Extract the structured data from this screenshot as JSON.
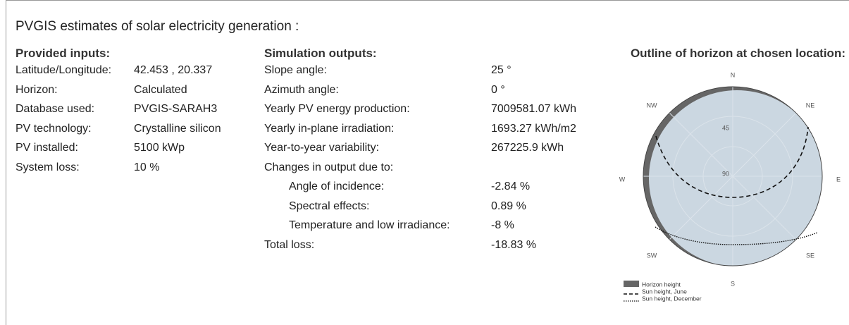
{
  "title": "PVGIS estimates of solar electricity generation :",
  "inputs": {
    "heading": "Provided inputs:",
    "rows": [
      [
        "Latitude/Longitude:",
        "42.453 , 20.337"
      ],
      [
        "Horizon:",
        "Calculated"
      ],
      [
        "Database used:",
        "PVGIS-SARAH3"
      ],
      [
        "PV technology:",
        "Crystalline silicon"
      ],
      [
        "PV installed:",
        "5100 kWp"
      ],
      [
        "System loss:",
        "10 %"
      ]
    ]
  },
  "outputs": {
    "heading": "Simulation outputs:",
    "rows": [
      [
        "Slope angle:",
        "25 °"
      ],
      [
        "Azimuth angle:",
        "0 °"
      ],
      [
        "Yearly PV energy production:",
        "7009581.07 kWh"
      ],
      [
        "Yearly in-plane irradiation:",
        "1693.27 kWh/m2"
      ],
      [
        "Year-to-year variability:",
        "267225.9 kWh"
      ]
    ],
    "changes_label": "Changes in output due to:",
    "changes": [
      [
        "Angle of incidence:",
        "-2.84 %"
      ],
      [
        "Spectral effects:",
        "0.89 %"
      ],
      [
        "Temperature and low irradiance:",
        "-8 %"
      ]
    ],
    "total": [
      "Total loss:",
      "-18.83 %"
    ]
  },
  "horizon": {
    "heading": "Outline of horizon at chosen location:",
    "directions": {
      "N": "N",
      "NE": "NE",
      "E": "E",
      "SE": "SE",
      "S": "S",
      "SW": "SW",
      "W": "W",
      "NW": "NW"
    },
    "elevations": [
      "45",
      "90"
    ],
    "legend": [
      "Horizon height",
      "Sun height, June",
      "Sun height, December"
    ]
  }
}
